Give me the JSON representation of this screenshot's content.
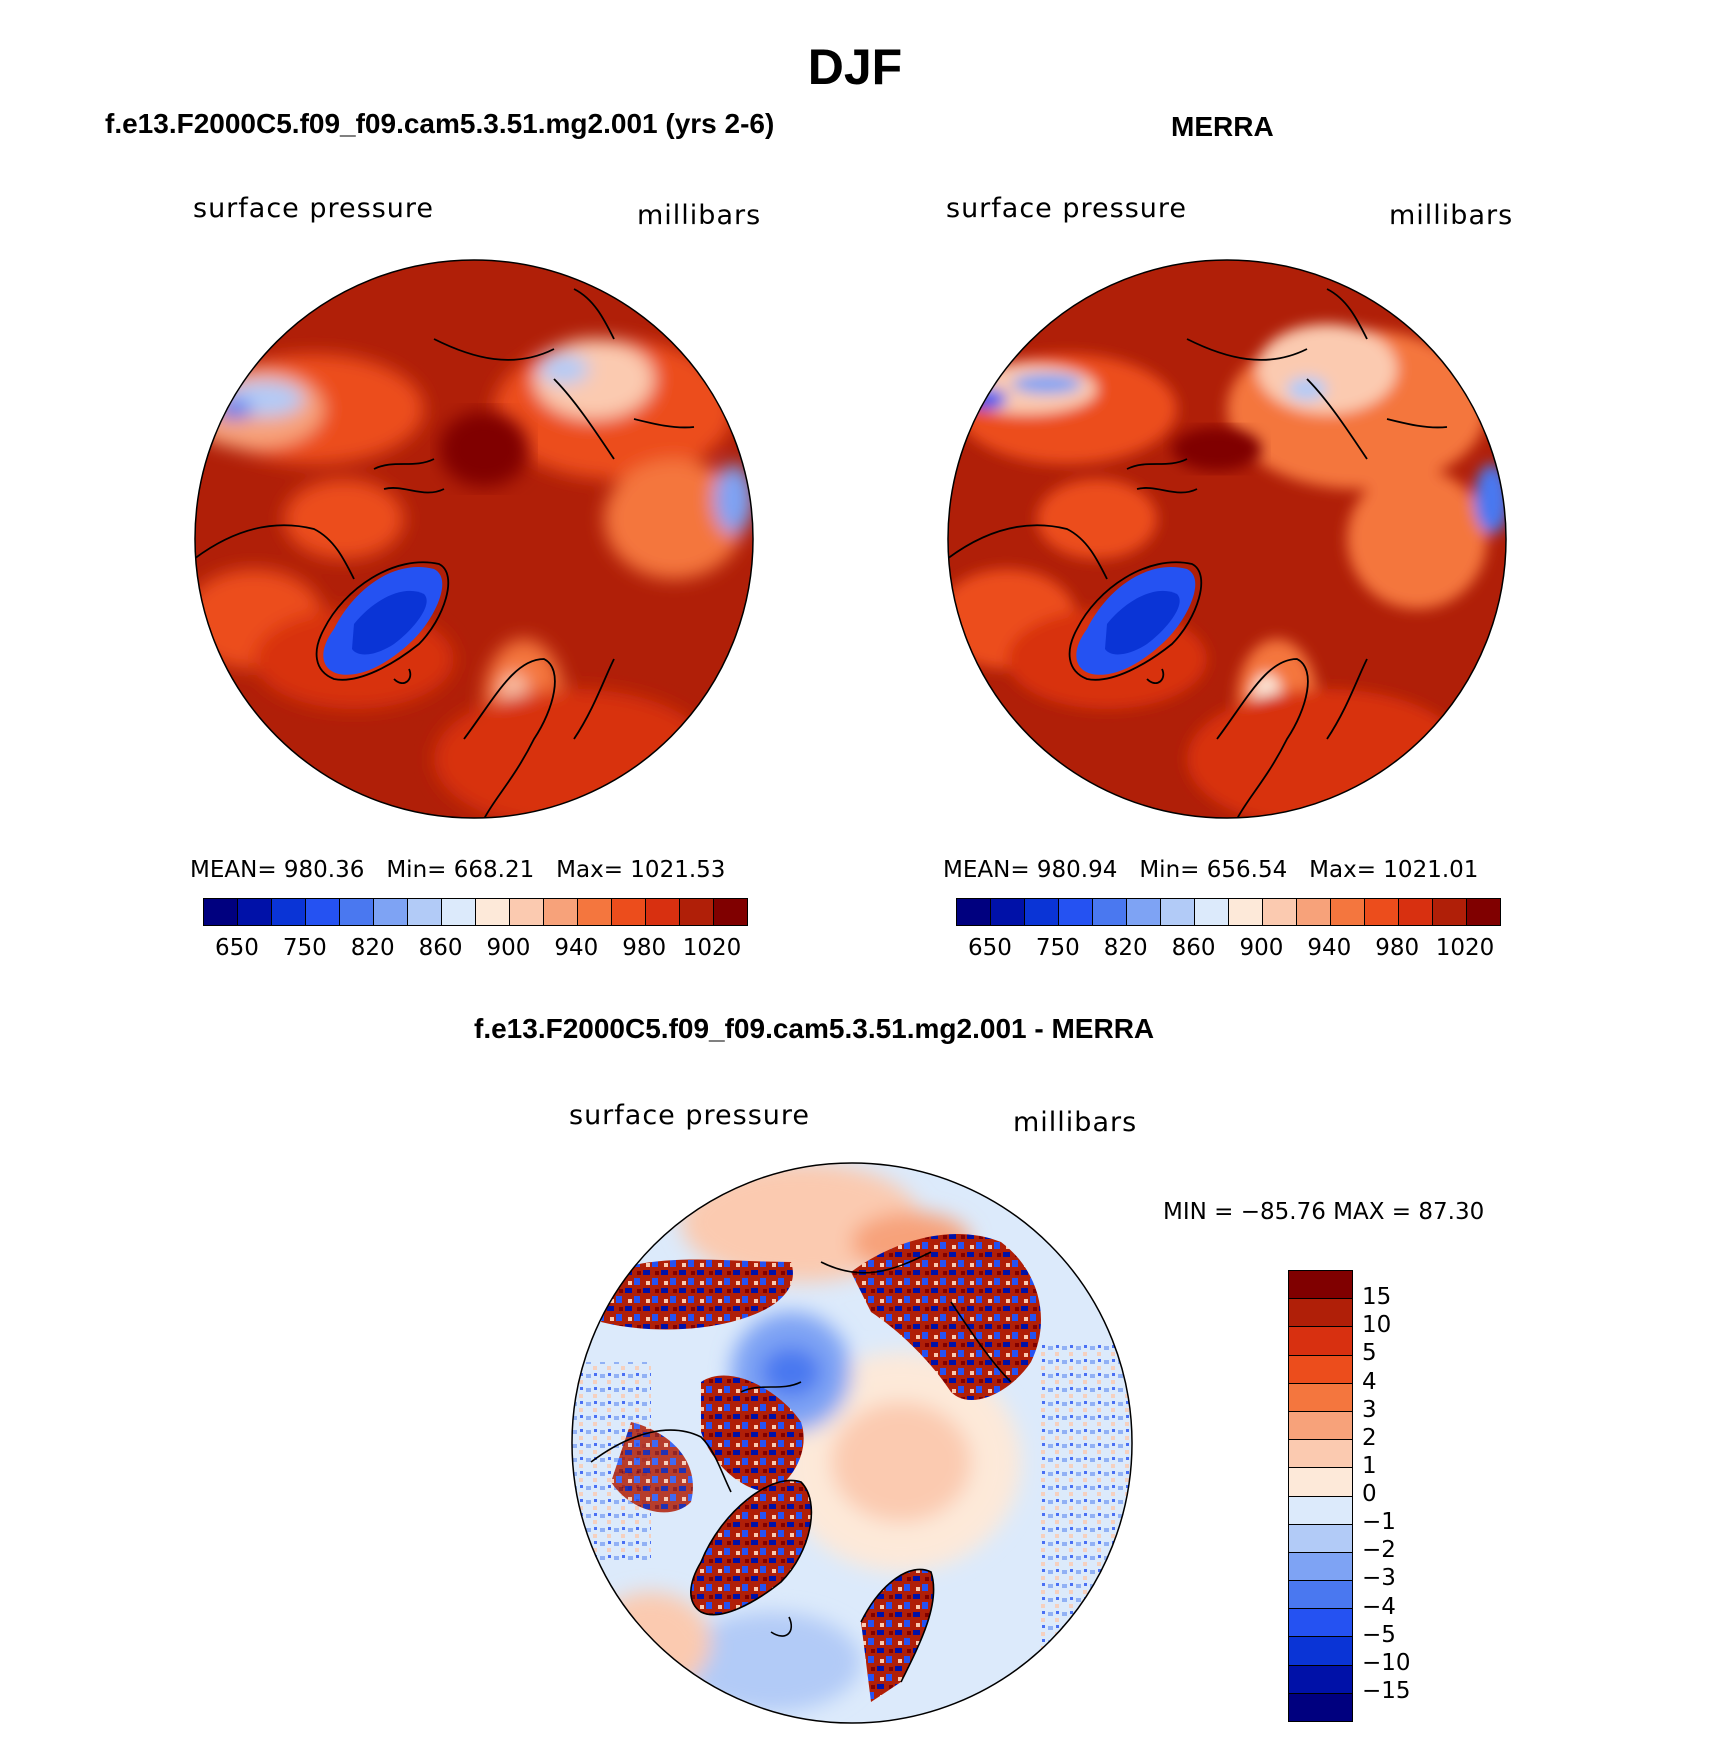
{
  "title": "DJF",
  "panels": [
    {
      "title": "f.e13.F2000C5.f09_f09.cam5.3.51.mg2.001 (yrs 2-6)",
      "left_label": "surface pressure",
      "right_label": "millibars",
      "stats": {
        "mean_label": "MEAN=",
        "mean": "980.36",
        "min_label": "Min=",
        "min": "668.21",
        "max_label": "Max=",
        "max": "1021.53"
      }
    },
    {
      "title": "MERRA",
      "left_label": "surface pressure",
      "right_label": "millibars",
      "stats": {
        "mean_label": "MEAN=",
        "mean": "980.94",
        "min_label": "Min=",
        "min": "656.54",
        "max_label": "Max=",
        "max": "1021.01"
      }
    },
    {
      "title": "f.e13.F2000C5.f09_f09.cam5.3.51.mg2.001 - MERRA",
      "left_label": "surface pressure",
      "right_label": "millibars",
      "minmax": "MIN = −85.76 MAX =   87.30"
    }
  ],
  "abs_colorbar": {
    "ticks": [
      "650",
      "750",
      "820",
      "860",
      "900",
      "940",
      "980",
      "1020"
    ],
    "colors": [
      "#00007f",
      "#0011a8",
      "#0a34d6",
      "#2552f2",
      "#4a78f0",
      "#7ea3f4",
      "#b2cbf7",
      "#dceafb",
      "#fde9d9",
      "#fbcab0",
      "#f7a27a",
      "#f4763e",
      "#ec4d1c",
      "#d83010",
      "#b01f08",
      "#800000"
    ]
  },
  "diff_colorbar": {
    "ticks": [
      "15",
      "10",
      "5",
      "4",
      "3",
      "2",
      "1",
      "0",
      "−1",
      "−2",
      "−3",
      "−4",
      "−5",
      "−10",
      "−15"
    ],
    "colors": [
      "#800000",
      "#b01f08",
      "#d83010",
      "#ec4d1c",
      "#f4763e",
      "#f7a27a",
      "#fbcab0",
      "#fde9d9",
      "#dceafb",
      "#b2cbf7",
      "#7ea3f4",
      "#4a78f0",
      "#2552f2",
      "#0a34d6",
      "#0011a8",
      "#00007f"
    ]
  }
}
